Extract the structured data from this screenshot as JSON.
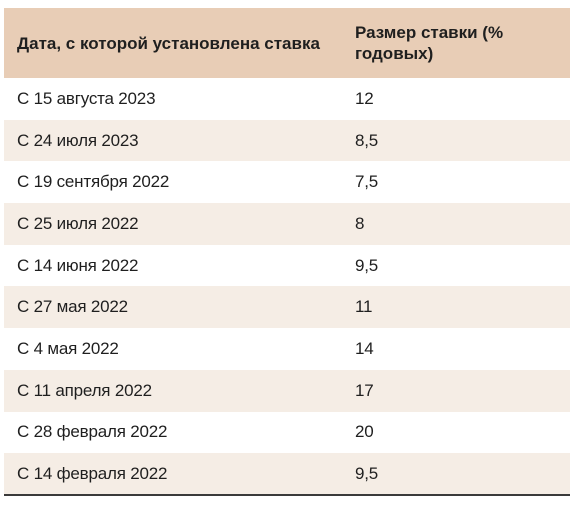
{
  "table": {
    "headers": {
      "date": "Дата, с которой установлена ставка",
      "rate": "Размер ставки (% годовых)"
    },
    "rows": [
      {
        "date": "С 15 августа 2023",
        "rate": "12"
      },
      {
        "date": "С 24 июля 2023",
        "rate": "8,5"
      },
      {
        "date": "С 19 сентября 2022",
        "rate": "7,5"
      },
      {
        "date": "С 25 июля 2022",
        "rate": "8"
      },
      {
        "date": "С 14 июня 2022",
        "rate": "9,5"
      },
      {
        "date": "С 27 мая 2022",
        "rate": "11"
      },
      {
        "date": "С 4 мая 2022",
        "rate": "14"
      },
      {
        "date": "С 11 апреля 2022",
        "rate": "17"
      },
      {
        "date": "С 28 февраля 2022",
        "rate": "20"
      },
      {
        "date": "С 14 февраля 2022",
        "rate": "9,5"
      }
    ]
  }
}
